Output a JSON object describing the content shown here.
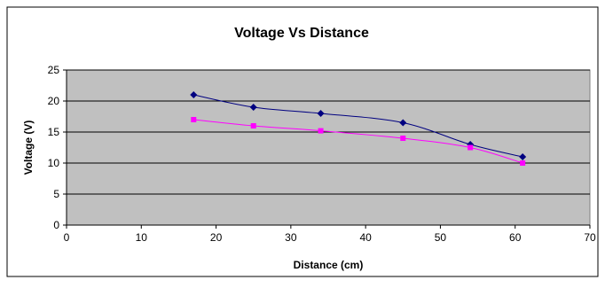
{
  "chart_data": {
    "type": "scatter",
    "title": "Voltage Vs Distance",
    "xlabel": "Distance (cm)",
    "ylabel": "Voltage (V)",
    "xlim": [
      0,
      70
    ],
    "ylim": [
      0,
      25
    ],
    "x_ticks": [
      "0",
      "10",
      "20",
      "30",
      "40",
      "50",
      "60",
      "70"
    ],
    "y_ticks": [
      "0",
      "5",
      "10",
      "15",
      "20",
      "25"
    ],
    "grid": "horizontal major gridlines",
    "legend": "none",
    "smooth_lines": true,
    "plot_background": "#c0c0c0",
    "series": [
      {
        "marker": "diamond",
        "color": "#000080",
        "points": [
          {
            "x": 17,
            "y": 21
          },
          {
            "x": 25,
            "y": 19
          },
          {
            "x": 34,
            "y": 18
          },
          {
            "x": 45,
            "y": 16.5
          },
          {
            "x": 54,
            "y": 13
          },
          {
            "x": 61,
            "y": 11
          }
        ]
      },
      {
        "marker": "square",
        "color": "#ff00ff",
        "points": [
          {
            "x": 17,
            "y": 17
          },
          {
            "x": 25,
            "y": 16
          },
          {
            "x": 34,
            "y": 15.2
          },
          {
            "x": 45,
            "y": 14
          },
          {
            "x": 54,
            "y": 12.5
          },
          {
            "x": 61,
            "y": 10
          }
        ]
      }
    ]
  }
}
